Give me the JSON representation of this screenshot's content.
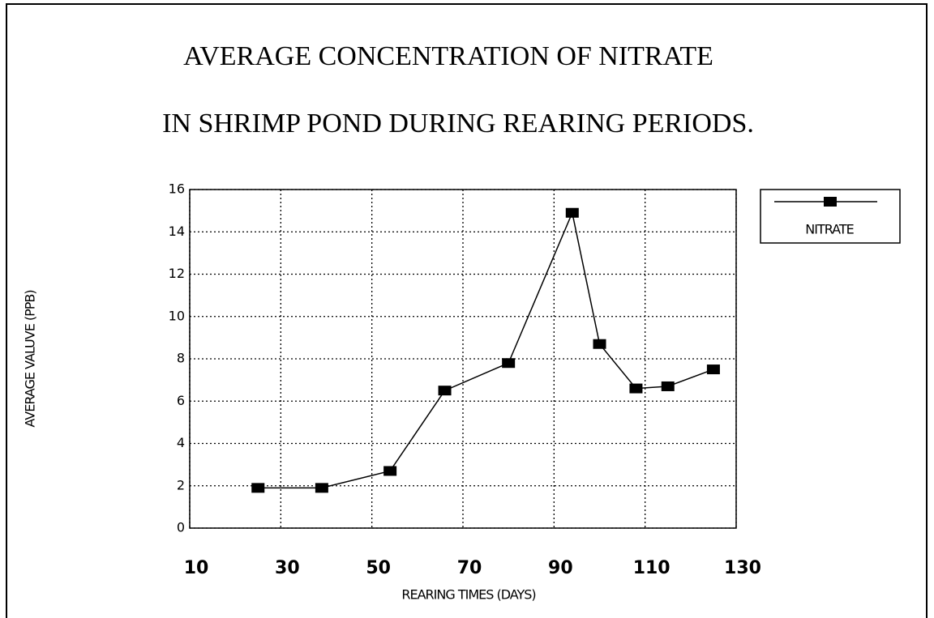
{
  "chart_data": {
    "type": "line",
    "title": "AVERAGE CONCENTRATION OF NITRATE",
    "subtitle": "IN SHRIMP POND DURING REARING PERIODS.",
    "x_label": "REARING TIMES (DAYS)",
    "y_label": "AVERAGE VALUVE (PPB)",
    "x": [
      25,
      39,
      54,
      66,
      80,
      94,
      100,
      108,
      115,
      125
    ],
    "series": [
      {
        "name": "NITRATE",
        "color": "#000000",
        "values": [
          1.9,
          1.9,
          2.7,
          6.5,
          7.8,
          14.9,
          8.7,
          6.6,
          6.7,
          7.5
        ]
      }
    ],
    "xlim": [
      10,
      130
    ],
    "xticks": [
      10,
      30,
      50,
      70,
      90,
      110,
      130
    ],
    "ylim": [
      0,
      16
    ],
    "yticks": [
      0,
      2,
      4,
      6,
      8,
      10,
      12,
      14,
      16
    ],
    "grid": true,
    "legend": "top-right"
  }
}
